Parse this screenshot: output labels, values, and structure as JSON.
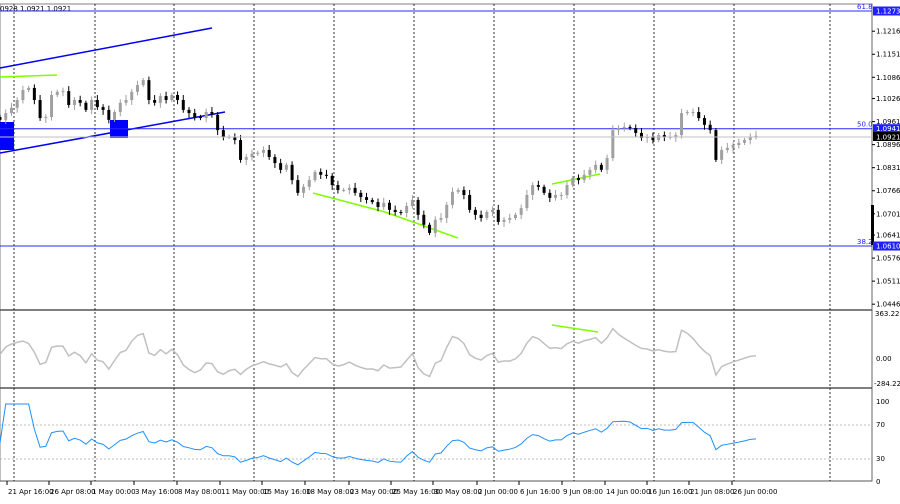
{
  "header": {
    "ohlc_text": "0928 1.0921 1.0921"
  },
  "colors": {
    "fib_line": "#2828ff",
    "channel": "#0000ee",
    "divergence": "#7fff00",
    "bull_candle": "#a0a0a0",
    "bear_candle": "#000000",
    "cci_line": "#c0c0c0",
    "rsi_line": "#1e90ff",
    "current_price_tag": "#000000"
  },
  "fib_levels": [
    {
      "label": "61.8",
      "price": 1.1273,
      "tag": "1.1273"
    },
    {
      "label": "50.0",
      "price": 1.0941,
      "tag": "1.0941"
    },
    {
      "label": "38.2",
      "price": 1.061,
      "tag": "1.0610"
    }
  ],
  "current_price": {
    "price": 1.0921,
    "tag": "1.0921"
  },
  "price_axis": [
    "1.1216",
    "1.1151",
    "1.1086",
    "1.1026",
    "1.0961",
    "1.0896",
    "1.0831",
    "1.0766",
    "1.0701",
    "1.0641",
    "1.0576",
    "1.0511",
    "1.0446"
  ],
  "cci_axis": {
    "max": "363.2239",
    "zero": "0.00",
    "min": "-284.224"
  },
  "rsi_axis": [
    "100",
    "70",
    "30",
    "0"
  ],
  "time_axis": [
    "21 Apr 16:00",
    "26 Apr 08:00",
    "1 May 00:00",
    "3 May 16:00",
    "8 May 08:00",
    "11 May 00:00",
    "15 May 16:00",
    "18 May 08:00",
    "23 May 00:00",
    "25 May 16:00",
    "30 May 08:00",
    "2 Jun 00:00",
    "6 Jun 16:00",
    "9 Jun 08:00",
    "14 Jun 00:00",
    "16 Jun 16:00",
    "21 Jun 08:00",
    "26 Jun 00:00"
  ],
  "chart_data": {
    "type": "candlestick",
    "symbol_timeframe_hint": "",
    "closes": [
      1.0966,
      1.0985,
      1.1,
      1.1022,
      1.105,
      1.1056,
      1.1022,
      1.0971,
      1.0974,
      1.1036,
      1.1045,
      1.1047,
      1.1008,
      1.1022,
      1.1014,
      1.0994,
      1.1022,
      1.1002,
      1.0994,
      1.0966,
      1.0988,
      1.1014,
      1.1022,
      1.1045,
      1.1064,
      1.1078,
      1.1022,
      1.1014,
      1.1033,
      1.1022,
      1.1036,
      1.1022,
      1.0994,
      1.0985,
      1.0974,
      1.0971,
      1.0988,
      1.098,
      1.0937,
      1.0918,
      1.0918,
      1.0909,
      1.0853,
      1.0861,
      1.087,
      1.0873,
      1.0881,
      1.0861,
      1.0844,
      1.0825,
      1.0839,
      1.0796,
      1.076,
      1.0777,
      1.0796,
      1.0819,
      1.0811,
      1.0808,
      1.0782,
      1.0768,
      1.0768,
      1.0774,
      1.076,
      1.0748,
      1.074,
      1.0734,
      1.072,
      1.0732,
      1.0712,
      1.0706,
      1.0703,
      1.0723,
      1.074,
      1.0698,
      1.067,
      1.0647,
      1.0684,
      1.0689,
      1.0726,
      1.0763,
      1.0768,
      1.0754,
      1.0712,
      1.0698,
      1.0689,
      1.0706,
      1.0712,
      1.0678,
      1.0684,
      1.0689,
      1.0698,
      1.0717,
      1.0754,
      1.0782,
      1.0777,
      1.076,
      1.0746,
      1.0754,
      1.0754,
      1.0782,
      1.0802,
      1.0796,
      1.0811,
      1.0825,
      1.0839,
      1.0825,
      1.0858,
      1.0937,
      1.0943,
      1.0946,
      1.0943,
      1.0929,
      1.0915,
      1.0918,
      1.0909,
      1.0923,
      1.0918,
      1.0918,
      1.0923,
      1.0985,
      1.0988,
      1.0988,
      1.0971,
      1.0952,
      1.0937,
      1.0853,
      1.0881,
      1.0887,
      1.0895,
      1.0901,
      1.0909,
      1.0918,
      1.0921
    ],
    "price_range": [
      1.0446,
      1.1305
    ],
    "indicators": [
      {
        "type": "line",
        "range": [
          -284.224,
          363.2239
        ]
      },
      {
        "type": "line",
        "range": [
          0,
          100
        ],
        "levels": [
          70,
          30
        ]
      }
    ]
  }
}
